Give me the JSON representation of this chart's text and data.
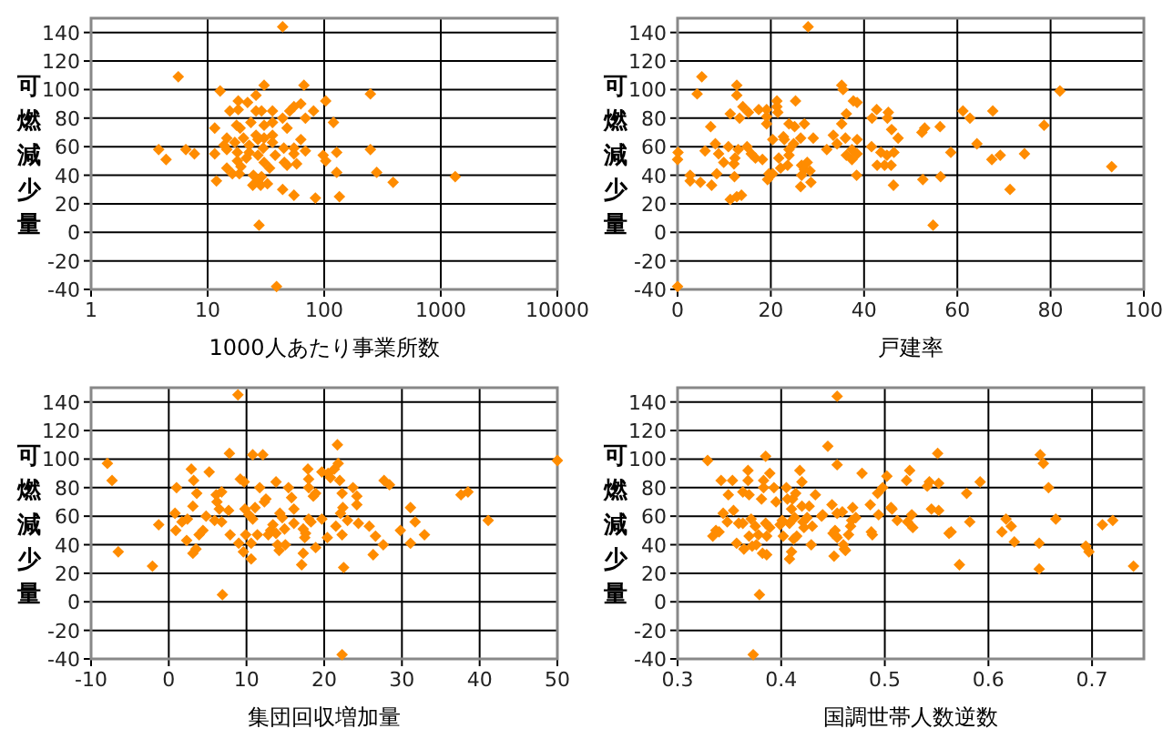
{
  "chart_data": [
    {
      "type": "scatter",
      "xlabel": "1000人あたり事業所数",
      "ylabel": "可燃減少量",
      "log": "x",
      "xlim": [
        1,
        10000
      ],
      "ylim": [
        -40,
        150
      ],
      "xticks": [
        1,
        10,
        100,
        1000,
        10000
      ],
      "yticks": [
        -40,
        -20,
        0,
        20,
        40,
        60,
        80,
        100,
        120,
        140
      ],
      "grid": true,
      "marker": "diamond",
      "series": [
        {
          "color": "#ff8c00",
          "x": [
            44,
            5.6,
            12.8,
            26,
            30.5,
            67,
            249,
            103,
            18.3,
            22,
            15.5,
            18.3,
            26,
            29,
            36,
            50.6,
            55,
            63,
            81,
            69,
            44,
            120,
            23.5,
            17.7,
            19,
            11.5,
            30.5,
            36,
            48,
            14.6,
            20.3,
            26,
            30.5,
            36,
            63,
            13.8,
            17.1,
            22.7,
            27,
            36,
            14.6,
            18,
            22.7,
            30,
            45,
            55,
            69,
            3.8,
            6.5,
            7.7,
            11.5,
            4.4,
            21.5,
            27,
            38,
            55,
            98,
            128,
            249,
            103,
            18,
            30.5,
            45.5,
            14.6,
            19.3,
            34,
            48,
            58,
            24.7,
            16.3,
            18.7,
            29,
            128,
            282,
            11.9,
            27,
            28.5,
            24.4,
            32.6,
            390,
            1330,
            44,
            55,
            84,
            135,
            27.6,
            39
          ],
          "values": [
            144,
            109,
            99,
            96,
            103,
            103,
            97,
            92,
            92,
            91,
            85,
            86,
            85,
            85,
            85,
            85,
            88,
            90,
            85,
            80,
            80,
            77,
            77,
            75,
            73,
            73,
            75,
            77,
            73,
            66,
            66,
            68,
            66,
            68,
            65,
            61,
            63,
            61,
            65,
            63,
            58,
            56,
            56,
            59,
            59,
            59,
            57,
            58,
            58,
            55,
            55,
            51,
            52,
            54,
            54,
            55,
            54,
            56,
            58,
            50,
            50,
            49,
            49,
            45,
            46,
            45,
            47,
            48,
            40,
            41,
            41,
            39,
            42,
            42,
            36,
            36,
            33,
            33,
            34,
            35,
            39,
            30,
            26,
            24,
            25,
            5,
            -38
          ]
        }
      ]
    },
    {
      "type": "scatter",
      "xlabel": "戸建率",
      "ylabel": "可燃減少量",
      "xlim": [
        0,
        100
      ],
      "ylim": [
        -40,
        150
      ],
      "xticks": [
        0,
        20,
        40,
        60,
        80,
        100
      ],
      "yticks": [
        -40,
        -20,
        0,
        20,
        40,
        60,
        80,
        100,
        120,
        140
      ],
      "grid": true,
      "marker": "diamond",
      "series": [
        {
          "color": "#ff8c00",
          "x": [
            28,
            5.2,
            4.2,
            12.7,
            12.7,
            35.2,
            35.5,
            82,
            37.7,
            38.5,
            21.3,
            25.3,
            21.3,
            14,
            11.3,
            13.3,
            15.2,
            17.4,
            19.1,
            21.5,
            36.2,
            42.7,
            45.2,
            41.7,
            45,
            61.2,
            62.7,
            67.6,
            7.1,
            19.1,
            19.1,
            23.9,
            25.1,
            27.2,
            35.2,
            45.9,
            47.3,
            53,
            52.4,
            56.3,
            78.6,
            0,
            0.1,
            5.9,
            8.1,
            10.9,
            13,
            14.9,
            16.7,
            20.4,
            22.9,
            22.7,
            26.4,
            29.1,
            24.9,
            23.9,
            23.9,
            33.4,
            34.2,
            36,
            38.5,
            37.4,
            38.5,
            36.2,
            37.4,
            32,
            41.6,
            43.6,
            44.9,
            46.4,
            42.8,
            44.4,
            45.8,
            58.6,
            64.2,
            67.4,
            69.2,
            74.4,
            8.8,
            9.9,
            8.4,
            12.3,
            12.1,
            15.8,
            18.2,
            21.7,
            22.1,
            23.6,
            19.6,
            19.3,
            20.4,
            26.6,
            27.8,
            27.2,
            28.4,
            26.6,
            28.6,
            26.4,
            38.4,
            52.6,
            56.4,
            2.7,
            2.7,
            4.9,
            7.3,
            12.2,
            11.3,
            12.7,
            13.7,
            46.3,
            71.3,
            93.1,
            54.8,
            0
          ],
          "values": [
            144,
            109,
            97,
            103,
            96,
            103,
            100,
            99,
            92,
            91,
            92,
            92,
            88,
            88,
            83,
            80,
            84,
            86,
            86,
            84,
            83,
            86,
            84,
            80,
            80,
            85,
            80,
            85,
            74,
            81,
            76,
            76,
            74,
            76,
            76,
            72,
            66,
            73,
            70,
            74,
            75,
            51,
            56,
            57,
            62,
            60,
            58,
            60,
            52,
            65,
            65,
            67,
            66,
            66,
            62,
            58,
            54,
            68,
            62,
            66,
            65,
            58,
            55,
            54,
            51,
            58,
            60,
            56,
            54,
            56,
            47,
            47,
            47,
            56,
            62,
            51,
            54,
            55,
            55,
            49,
            41,
            52,
            48,
            55,
            51,
            52,
            45,
            47,
            41,
            37,
            41,
            47,
            49,
            44,
            43,
            40,
            35,
            32,
            40,
            37,
            39,
            40,
            36,
            35,
            33,
            39,
            23,
            25,
            26,
            33,
            30,
            46,
            5,
            -38
          ]
        }
      ]
    },
    {
      "type": "scatter",
      "xlabel": "集団回収増加量",
      "ylabel": "可燃減少量",
      "xlim": [
        -10,
        50
      ],
      "ylim": [
        -40,
        150
      ],
      "xticks": [
        -10,
        0,
        10,
        20,
        30,
        40,
        50
      ],
      "yticks": [
        -40,
        -20,
        0,
        20,
        40,
        60,
        80,
        100,
        120,
        140
      ],
      "grid": true,
      "marker": "diamond",
      "series": [
        {
          "color": "#ff8c00",
          "x": [
            8.9,
            -7.9,
            -7.3,
            -6.5,
            -1.3,
            -2.1,
            0.8,
            1,
            0.9,
            2.9,
            3.2,
            3.6,
            3.1,
            1.7,
            2.4,
            2.3,
            3.1,
            3.5,
            3.9,
            4.4,
            4.8,
            5.2,
            6.1,
            6.8,
            6.2,
            6.5,
            5.9,
            6.8,
            7.7,
            7.9,
            7.8,
            6.9,
            9.2,
            9.7,
            9,
            9.6,
            9.8,
            10.3,
            9.9,
            10.6,
            10.6,
            10.8,
            11.1,
            10.8,
            11.4,
            12.1,
            11.7,
            12.3,
            12.5,
            12.8,
            13.1,
            13.4,
            13.8,
            13.8,
            14,
            14.2,
            14.3,
            14.6,
            14.9,
            15,
            15.4,
            15.8,
            16.1,
            16.1,
            17.1,
            17.3,
            17.3,
            17.6,
            17.5,
            17.9,
            18,
            18,
            18,
            18.3,
            18.6,
            18.9,
            18.9,
            19.7,
            19.7,
            20.4,
            20.5,
            20.8,
            21.3,
            21.5,
            21.7,
            21.8,
            22,
            22.1,
            22.3,
            22.4,
            22.3,
            22.5,
            22.3,
            23,
            23.7,
            24.2,
            24.2,
            24.4,
            25.8,
            26.3,
            26.6,
            27.6,
            27.7,
            28.4,
            29.8,
            31.1,
            31.1,
            31.7,
            32.9,
            37.6,
            38.5,
            41.1,
            50
          ],
          "values": [
            145,
            97,
            85,
            35,
            54,
            25,
            62,
            80,
            50,
            93,
            85,
            76,
            67,
            56,
            58,
            43,
            34,
            37,
            47,
            50,
            60,
            91,
            75,
            77,
            70,
            65,
            57,
            56,
            64,
            47,
            104,
            5,
            86,
            84,
            41,
            35,
            65,
            61,
            47,
            41,
            30,
            103,
            66,
            58,
            47,
            103,
            80,
            70,
            72,
            47,
            50,
            54,
            84,
            48,
            40,
            36,
            62,
            59,
            51,
            40,
            80,
            73,
            65,
            55,
            26,
            34,
            51,
            48,
            45,
            93,
            86,
            80,
            58,
            56,
            74,
            76,
            38,
            91,
            58,
            45,
            90,
            87,
            93,
            53,
            110,
            97,
            85,
            62,
            76,
            66,
            47,
            24,
            -37,
            57,
            80,
            74,
            68,
            55,
            53,
            33,
            46,
            40,
            85,
            82,
            50,
            41,
            66,
            56,
            47,
            75,
            77,
            57,
            99
          ]
        }
      ]
    },
    {
      "type": "scatter",
      "xlabel": "国調世帯人数逆数",
      "ylabel": "可燃減少量",
      "xlim": [
        0.3,
        0.75
      ],
      "ylim": [
        -40,
        150
      ],
      "xticks": [
        0.3,
        0.4,
        0.5,
        0.6,
        0.7
      ],
      "yticks": [
        -40,
        -20,
        0,
        20,
        40,
        60,
        80,
        100,
        120,
        140
      ],
      "grid": true,
      "marker": "diamond",
      "series": [
        {
          "color": "#ff8c00",
          "x": [
            0.454,
            0.329,
            0.334,
            0.337,
            0.34,
            0.342,
            0.344,
            0.348,
            0.349,
            0.353,
            0.354,
            0.357,
            0.359,
            0.363,
            0.363,
            0.364,
            0.368,
            0.368,
            0.369,
            0.369,
            0.371,
            0.372,
            0.373,
            0.375,
            0.376,
            0.378,
            0.379,
            0.381,
            0.382,
            0.383,
            0.383,
            0.385,
            0.385,
            0.386,
            0.386,
            0.389,
            0.389,
            0.393,
            0.395,
            0.399,
            0.401,
            0.402,
            0.405,
            0.406,
            0.408,
            0.408,
            0.41,
            0.41,
            0.411,
            0.412,
            0.413,
            0.414,
            0.415,
            0.418,
            0.42,
            0.42,
            0.421,
            0.422,
            0.425,
            0.427,
            0.429,
            0.43,
            0.433,
            0.439,
            0.44,
            0.445,
            0.449,
            0.45,
            0.452,
            0.453,
            0.454,
            0.451,
            0.454,
            0.454,
            0.459,
            0.46,
            0.461,
            0.462,
            0.465,
            0.467,
            0.468,
            0.469,
            0.472,
            0.478,
            0.486,
            0.487,
            0.488,
            0.493,
            0.494,
            0.498,
            0.502,
            0.506,
            0.507,
            0.512,
            0.521,
            0.522,
            0.524,
            0.526,
            0.527,
            0.541,
            0.543,
            0.545,
            0.551,
            0.552,
            0.552,
            0.562,
            0.564,
            0.572,
            0.579,
            0.582,
            0.592,
            0.613,
            0.617,
            0.622,
            0.625,
            0.649,
            0.649,
            0.65,
            0.653,
            0.658,
            0.665,
            0.694,
            0.697,
            0.71,
            0.72,
            0.74
          ],
          "values": [
            144,
            99,
            46,
            50,
            49,
            85,
            62,
            56,
            75,
            85,
            64,
            41,
            55,
            77,
            55,
            37,
            92,
            85,
            75,
            46,
            58,
            39,
            -37,
            53,
            40,
            47,
            5,
            72,
            34,
            80,
            85,
            102,
            55,
            33,
            46,
            90,
            52,
            80,
            70,
            54,
            57,
            46,
            80,
            72,
            55,
            30,
            65,
            35,
            72,
            44,
            59,
            76,
            46,
            92,
            84,
            67,
            56,
            52,
            59,
            67,
            40,
            53,
            75,
            60,
            61,
            109,
            68,
            48,
            50,
            46,
            45,
            32,
            96,
            62,
            63,
            40,
            37,
            36,
            47,
            53,
            57,
            66,
            59,
            90,
            68,
            49,
            47,
            76,
            61,
            80,
            88,
            66,
            65,
            57,
            85,
            56,
            92,
            61,
            52,
            81,
            84,
            65,
            104,
            83,
            64,
            48,
            49,
            26,
            76,
            56,
            84,
            49,
            58,
            53,
            42,
            41,
            23,
            103,
            97,
            80,
            58,
            39,
            35,
            54,
            57,
            25
          ]
        }
      ]
    }
  ]
}
